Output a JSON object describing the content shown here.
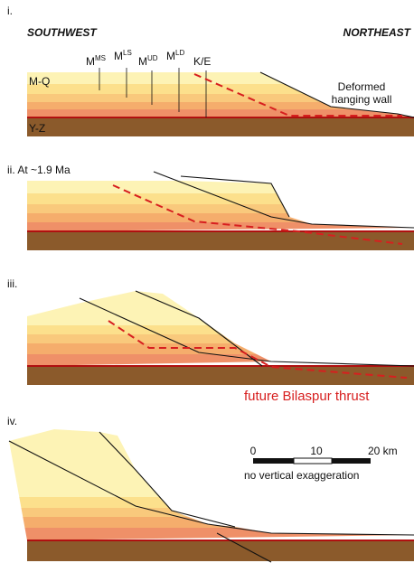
{
  "panels": [
    {
      "label": "i.",
      "left_direction": "SOUTHWEST",
      "right_direction": "NORTHEAST",
      "units": [
        {
          "base": "M",
          "sup": "MS"
        },
        {
          "base": "M",
          "sup": "LS"
        },
        {
          "base": "M",
          "sup": "UD"
        },
        {
          "base": "M",
          "sup": "LD"
        },
        {
          "base": "K/E",
          "sup": null
        }
      ],
      "upper_unit": "M-Q",
      "basement": "Y-Z",
      "annotation_line1": "Deformed",
      "annotation_line2": "hanging wall"
    },
    {
      "label": "ii. At ~1.9 Ma"
    },
    {
      "label": "iii.",
      "annotation": "future Bilaspur thrust"
    },
    {
      "label": "iv."
    }
  ],
  "scale_bar": {
    "ticks": [
      "0",
      "10",
      "20 km"
    ],
    "note": "no vertical exaggeration"
  }
}
